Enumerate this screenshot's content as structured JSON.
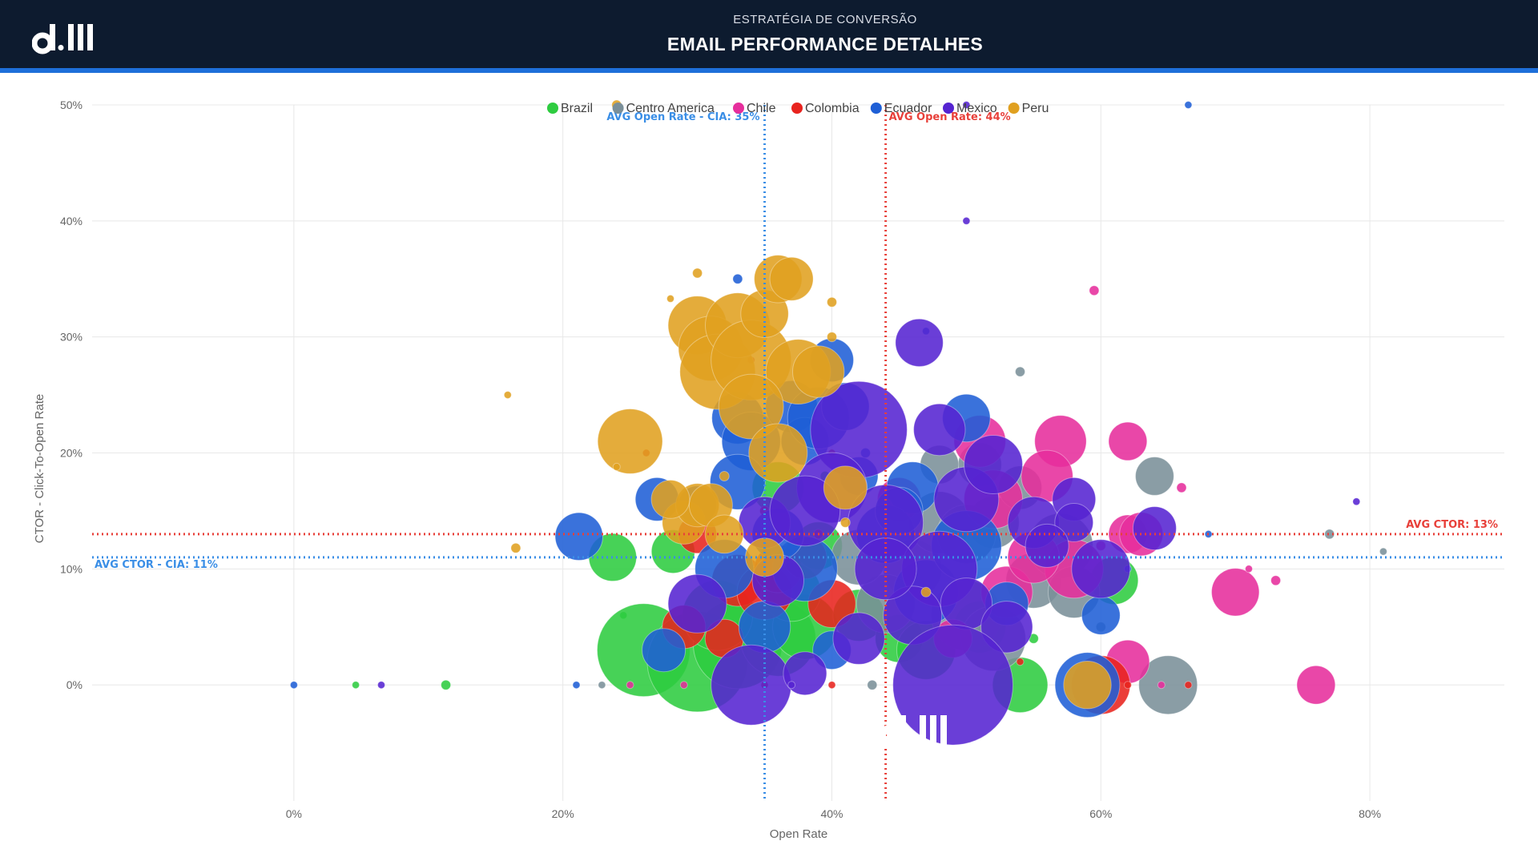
{
  "header": {
    "subtitle": "ESTRATÉGIA DE CONVERSÃO",
    "title": "EMAIL PERFORMANCE DETALHES",
    "logo_text": "dill"
  },
  "colors": {
    "header_bg": "#0d1b2f",
    "header_accent": "#1e6fd9"
  },
  "chart_data": {
    "type": "scatter",
    "xlabel": "Open Rate",
    "ylabel": "CTOR - Click-To-Open Rate",
    "xlim": [
      -0.15,
      0.9
    ],
    "ylim": [
      -0.1,
      0.5
    ],
    "xticks": [
      0,
      0.2,
      0.4,
      0.6,
      0.8
    ],
    "xtick_labels": [
      "0%",
      "20%",
      "40%",
      "60%",
      "80%"
    ],
    "yticks": [
      0,
      0.1,
      0.2,
      0.3,
      0.4,
      0.5
    ],
    "ytick_labels": [
      "0%",
      "10%",
      "20%",
      "30%",
      "40%",
      "50%"
    ],
    "grid": true,
    "legend_position": "top-center",
    "reference_lines": [
      {
        "orientation": "vertical",
        "value": 0.35,
        "label": "AVG Open Rate - CIA: 35%",
        "color": "#3a8ee6"
      },
      {
        "orientation": "vertical",
        "value": 0.44,
        "label": "AVG Open Rate: 44%",
        "color": "#e8403a"
      },
      {
        "orientation": "horizontal",
        "value": 0.13,
        "label": "AVG CTOR: 13%",
        "color": "#e8403a"
      },
      {
        "orientation": "horizontal",
        "value": 0.11,
        "label": "AVG CTOR - CIA: 11%",
        "color": "#3a8ee6"
      }
    ],
    "series": [
      {
        "name": "Brazil",
        "color": "#2ecc40",
        "points": [
          [
            0.046,
            0,
            1
          ],
          [
            0.113,
            0,
            2
          ],
          [
            0.237,
            0.11,
            5
          ],
          [
            0.282,
            0.115,
            4
          ],
          [
            0.245,
            0.06,
            1
          ],
          [
            0.26,
            0.03,
            22
          ],
          [
            0.3,
            0.02,
            26
          ],
          [
            0.33,
            0.035,
            20
          ],
          [
            0.36,
            0.04,
            14
          ],
          [
            0.38,
            0.05,
            10
          ],
          [
            0.37,
            0.08,
            8
          ],
          [
            0.36,
            0.17,
            6
          ],
          [
            0.42,
            0.06,
            6
          ],
          [
            0.45,
            0.04,
            5
          ],
          [
            0.54,
            0,
            7
          ],
          [
            0.55,
            0.04,
            2
          ],
          [
            0.61,
            0.09,
            5
          ],
          [
            0.395,
            0.18,
            2
          ],
          [
            0.34,
            0.23,
            1
          ],
          [
            0.47,
            0.03,
            8
          ],
          [
            0.51,
            0.05,
            6
          ],
          [
            0.315,
            0.06,
            12
          ],
          [
            0.39,
            0.12,
            5
          ]
        ]
      },
      {
        "name": "Centro America",
        "color": "#7a8f99",
        "points": [
          [
            0.229,
            0,
            1
          ],
          [
            0.43,
            0,
            2
          ],
          [
            0.54,
            0.27,
            2
          ],
          [
            0.6,
            0.05,
            2
          ],
          [
            0.64,
            0.18,
            3
          ],
          [
            0.65,
            0,
            8
          ],
          [
            0.77,
            0.13,
            2
          ],
          [
            0.81,
            0.115,
            1
          ],
          [
            0.51,
            0.19,
            4
          ],
          [
            0.52,
            0.14,
            6
          ],
          [
            0.55,
            0.09,
            7
          ],
          [
            0.57,
            0.12,
            10
          ],
          [
            0.5,
            0.06,
            12
          ],
          [
            0.46,
            0.1,
            8
          ],
          [
            0.48,
            0.19,
            3
          ],
          [
            0.44,
            0.07,
            8
          ],
          [
            0.52,
            0.04,
            10
          ],
          [
            0.58,
            0.08,
            6
          ],
          [
            0.42,
            0.11,
            7
          ],
          [
            0.48,
            0.14,
            9
          ],
          [
            0.54,
            0.17,
            4
          ],
          [
            0.5,
            0.13,
            8
          ]
        ]
      },
      {
        "name": "Chile",
        "color": "#e62e9c",
        "points": [
          [
            0.25,
            0,
            1
          ],
          [
            0.29,
            0,
            1
          ],
          [
            0.595,
            0.34,
            2
          ],
          [
            0.51,
            0.21,
            6
          ],
          [
            0.57,
            0.21,
            6
          ],
          [
            0.62,
            0.21,
            3
          ],
          [
            0.66,
            0.17,
            2
          ],
          [
            0.56,
            0.18,
            6
          ],
          [
            0.52,
            0.16,
            8
          ],
          [
            0.62,
            0.13,
            3
          ],
          [
            0.7,
            0.08,
            5
          ],
          [
            0.71,
            0.1,
            1
          ],
          [
            0.73,
            0.09,
            2
          ],
          [
            0.76,
            0,
            3
          ],
          [
            0.62,
            0.02,
            4
          ],
          [
            0.63,
            0.13,
            4
          ],
          [
            0.58,
            0.1,
            8
          ],
          [
            0.6,
            0.12,
            2
          ],
          [
            0.53,
            0.08,
            6
          ],
          [
            0.55,
            0.11,
            6
          ],
          [
            0.49,
            0.04,
            3
          ],
          [
            0.45,
            0.16,
            4
          ],
          [
            0.645,
            0,
            1
          ]
        ]
      },
      {
        "name": "Colombia",
        "color": "#e8231e",
        "points": [
          [
            0.262,
            0.2,
            1
          ],
          [
            0.3,
            0.13,
            3
          ],
          [
            0.33,
            0.09,
            6
          ],
          [
            0.35,
            0.08,
            7
          ],
          [
            0.36,
            0.1,
            5
          ],
          [
            0.4,
            0.07,
            5
          ],
          [
            0.29,
            0.05,
            4
          ],
          [
            0.34,
            0.28,
            1
          ],
          [
            0.35,
            0.15,
            2
          ],
          [
            0.39,
            0.13,
            2
          ],
          [
            0.4,
            0.2,
            1
          ],
          [
            0.35,
            0,
            1
          ],
          [
            0.4,
            0,
            1
          ],
          [
            0.6,
            0,
            8
          ],
          [
            0.62,
            0,
            1
          ],
          [
            0.665,
            0,
            1
          ],
          [
            0.54,
            0.02,
            1
          ],
          [
            0.32,
            0.04,
            3
          ],
          [
            0.38,
            0.11,
            4
          ]
        ]
      },
      {
        "name": "Ecuador",
        "color": "#1f5fd6",
        "points": [
          [
            0,
            0,
            1
          ],
          [
            0.21,
            0,
            1
          ],
          [
            0.212,
            0.128,
            5
          ],
          [
            0.27,
            0.16,
            4
          ],
          [
            0.3,
            0.155,
            3
          ],
          [
            0.33,
            0.35,
            2
          ],
          [
            0.33,
            0.23,
            6
          ],
          [
            0.34,
            0.21,
            8
          ],
          [
            0.33,
            0.175,
            7
          ],
          [
            0.37,
            0.24,
            6
          ],
          [
            0.38,
            0.21,
            5
          ],
          [
            0.39,
            0.23,
            9
          ],
          [
            0.41,
            0.24,
            5
          ],
          [
            0.42,
            0.18,
            3
          ],
          [
            0.4,
            0.28,
            4
          ],
          [
            0.47,
            0.305,
            1
          ],
          [
            0.46,
            0.17,
            6
          ],
          [
            0.5,
            0.23,
            5
          ],
          [
            0.44,
            0.13,
            8
          ],
          [
            0.47,
            0.08,
            10
          ],
          [
            0.5,
            0.12,
            12
          ],
          [
            0.38,
            0.1,
            10
          ],
          [
            0.35,
            0.05,
            6
          ],
          [
            0.32,
            0.1,
            8
          ],
          [
            0.665,
            0.5,
            1
          ],
          [
            0.6,
            0.06,
            3
          ],
          [
            0.59,
            0,
            10
          ],
          [
            0.62,
            0.1,
            1
          ],
          [
            0.68,
            0.13,
            1
          ],
          [
            0.53,
            0.07,
            4
          ],
          [
            0.4,
            0.03,
            3
          ],
          [
            0.36,
            0.13,
            6
          ],
          [
            0.275,
            0.03,
            4
          ],
          [
            0.45,
            0.15,
            5
          ],
          [
            0.425,
            0.2,
            2
          ]
        ]
      },
      {
        "name": "Mexico",
        "color": "#5523d1",
        "points": [
          [
            0.065,
            0,
            1
          ],
          [
            0.5,
            0.4,
            1
          ],
          [
            0.5,
            0.5,
            1
          ],
          [
            0.42,
            0.22,
            24
          ],
          [
            0.465,
            0.295,
            5
          ],
          [
            0.48,
            0.22,
            6
          ],
          [
            0.4,
            0.17,
            12
          ],
          [
            0.44,
            0.14,
            14
          ],
          [
            0.5,
            0.16,
            10
          ],
          [
            0.52,
            0.19,
            8
          ],
          [
            0.55,
            0.14,
            6
          ],
          [
            0.58,
            0.16,
            4
          ],
          [
            0.58,
            0.14,
            3
          ],
          [
            0.6,
            0.1,
            8
          ],
          [
            0.64,
            0.135,
            4
          ],
          [
            0.79,
            0.158,
            1
          ],
          [
            0.48,
            0.1,
            14
          ],
          [
            0.46,
            0.06,
            8
          ],
          [
            0.42,
            0.04,
            6
          ],
          [
            0.5,
            0.07,
            6
          ],
          [
            0.34,
            0,
            16
          ],
          [
            0.38,
            0.01,
            4
          ],
          [
            0.37,
            0,
            1
          ],
          [
            0.3,
            0.07,
            8
          ],
          [
            0.35,
            0.14,
            6
          ],
          [
            0.38,
            0.15,
            12
          ],
          [
            0.53,
            0.05,
            6
          ],
          [
            0.49,
            0,
            38
          ],
          [
            0.56,
            0.12,
            4
          ],
          [
            0.44,
            0.1,
            9
          ],
          [
            0.36,
            0.09,
            6
          ]
        ]
      },
      {
        "name": "Peru",
        "color": "#e0a020",
        "points": [
          [
            0.24,
            0.5,
            2
          ],
          [
            0.159,
            0.25,
            1
          ],
          [
            0.165,
            0.118,
            2
          ],
          [
            0.25,
            0.21,
            10
          ],
          [
            0.24,
            0.188,
            1
          ],
          [
            0.3,
            0.355,
            2
          ],
          [
            0.28,
            0.333,
            1
          ],
          [
            0.3,
            0.31,
            8
          ],
          [
            0.31,
            0.29,
            10
          ],
          [
            0.315,
            0.27,
            14
          ],
          [
            0.33,
            0.31,
            10
          ],
          [
            0.34,
            0.28,
            16
          ],
          [
            0.35,
            0.32,
            5
          ],
          [
            0.36,
            0.35,
            5
          ],
          [
            0.37,
            0.35,
            4
          ],
          [
            0.375,
            0.27,
            10
          ],
          [
            0.39,
            0.27,
            6
          ],
          [
            0.4,
            0.33,
            2
          ],
          [
            0.4,
            0.3,
            2
          ],
          [
            0.34,
            0.24,
            10
          ],
          [
            0.36,
            0.2,
            8
          ],
          [
            0.29,
            0.14,
            4
          ],
          [
            0.3,
            0.155,
            4
          ],
          [
            0.32,
            0.18,
            2
          ],
          [
            0.31,
            0.155,
            4
          ],
          [
            0.28,
            0.16,
            3
          ],
          [
            0.32,
            0.13,
            3
          ],
          [
            0.41,
            0.14,
            2
          ],
          [
            0.59,
            0,
            5
          ],
          [
            0.47,
            0.08,
            2
          ],
          [
            0.41,
            0.17,
            4
          ],
          [
            0.35,
            0.11,
            3
          ]
        ]
      }
    ]
  }
}
